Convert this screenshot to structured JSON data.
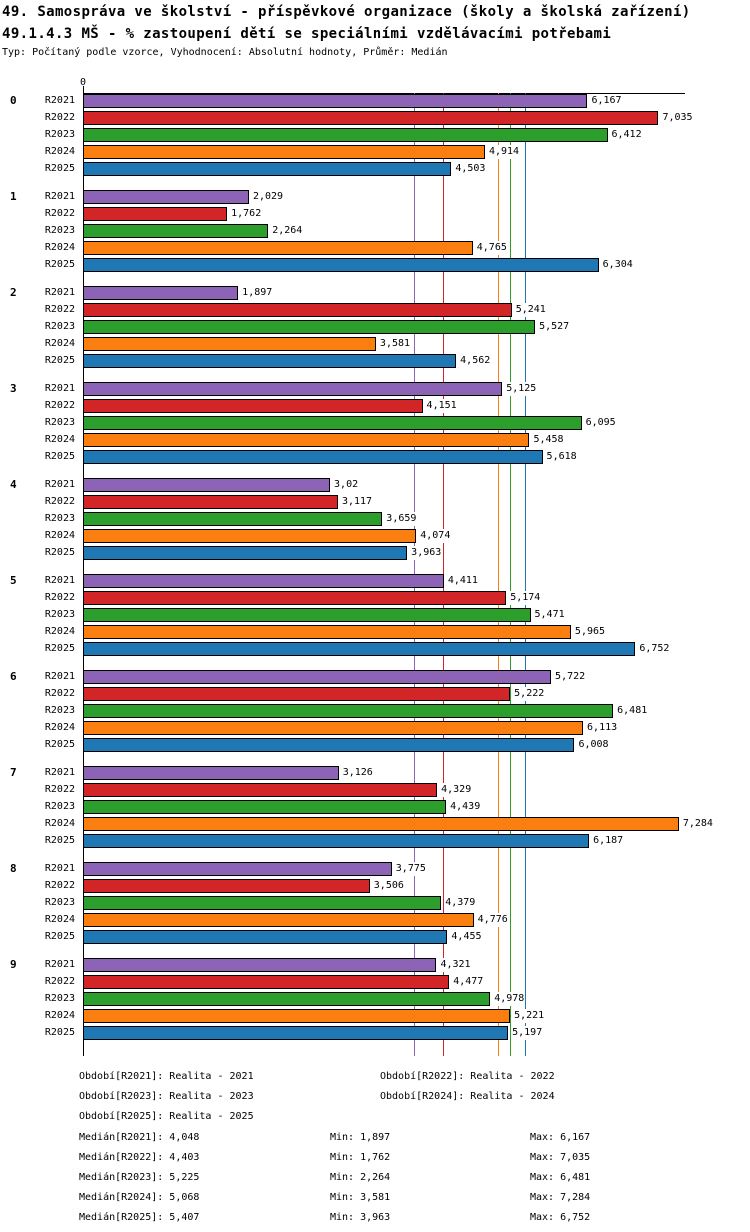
{
  "header": {
    "title_line1": "49. Samospráva ve školství - příspěvkové organizace (školy a školská zařízení)",
    "title_line2": "49.1.4.3 MŠ - % zastoupení dětí se speciálními vzdělávacími potřebami",
    "subtitle": "Typ: Počítaný podle vzorce, Vyhodnocení: Absolutní hodnoty, Průměr: Medián"
  },
  "chart_data": {
    "type": "bar",
    "orientation": "horizontal",
    "title": "49.1.4.3 MŠ - % zastoupení dětí se speciálními vzdělávacími potřebami",
    "xlabel": "",
    "ylabel": "",
    "xlim": [
      0,
      7.36
    ],
    "origin_tick_label": "0",
    "grid": false,
    "legend_position": "bottom",
    "series": [
      "R2021",
      "R2022",
      "R2023",
      "R2024",
      "R2025"
    ],
    "series_colors": {
      "R2021": "#8C63B5",
      "R2022": "#D22528",
      "R2023": "#2B9E2B",
      "R2024": "#FB7E10",
      "R2025": "#1F77B4"
    },
    "categories": [
      "0",
      "1",
      "2",
      "3",
      "4",
      "5",
      "6",
      "7",
      "8",
      "9"
    ],
    "groups": [
      {
        "category": "0",
        "values": [
          6.167,
          7.035,
          6.412,
          4.914,
          4.503
        ],
        "labels": [
          "6,167",
          "7,035",
          "6,412",
          "4,914",
          "4,503"
        ]
      },
      {
        "category": "1",
        "values": [
          2.029,
          1.762,
          2.264,
          4.765,
          6.304
        ],
        "labels": [
          "2,029",
          "1,762",
          "2,264",
          "4,765",
          "6,304"
        ]
      },
      {
        "category": "2",
        "values": [
          1.897,
          5.241,
          5.527,
          3.581,
          4.562
        ],
        "labels": [
          "1,897",
          "5,241",
          "5,527",
          "3,581",
          "4,562"
        ]
      },
      {
        "category": "3",
        "values": [
          5.125,
          4.151,
          6.095,
          5.458,
          5.618
        ],
        "labels": [
          "5,125",
          "4,151",
          "6,095",
          "5,458",
          "5,618"
        ]
      },
      {
        "category": "4",
        "values": [
          3.02,
          3.117,
          3.659,
          4.074,
          3.963
        ],
        "labels": [
          "3,02",
          "3,117",
          "3,659",
          "4,074",
          "3,963"
        ]
      },
      {
        "category": "5",
        "values": [
          4.411,
          5.174,
          5.471,
          5.965,
          6.752
        ],
        "labels": [
          "4,411",
          "5,174",
          "5,471",
          "5,965",
          "6,752"
        ]
      },
      {
        "category": "6",
        "values": [
          5.722,
          5.222,
          6.481,
          6.113,
          6.008
        ],
        "labels": [
          "5,722",
          "5,222",
          "6,481",
          "6,113",
          "6,008"
        ]
      },
      {
        "category": "7",
        "values": [
          3.126,
          4.329,
          4.439,
          7.284,
          6.187
        ],
        "labels": [
          "3,126",
          "4,329",
          "4,439",
          "7,284",
          "6,187"
        ]
      },
      {
        "category": "8",
        "values": [
          3.775,
          3.506,
          4.379,
          4.776,
          4.455
        ],
        "labels": [
          "3,775",
          "3,506",
          "4,379",
          "4,776",
          "4,455"
        ]
      },
      {
        "category": "9",
        "values": [
          4.321,
          4.477,
          4.978,
          5.221,
          5.197
        ],
        "labels": [
          "4,321",
          "4,477",
          "4,978",
          "5,221",
          "5,197"
        ]
      }
    ],
    "median_lines": [
      {
        "series": "R2021",
        "value": 4.048
      },
      {
        "series": "R2022",
        "value": 4.403
      },
      {
        "series": "R2023",
        "value": 5.225
      },
      {
        "series": "R2024",
        "value": 5.068
      },
      {
        "series": "R2025",
        "value": 5.407
      }
    ]
  },
  "legend": {
    "periods": [
      {
        "col1": "Období[R2021]: Realita - 2021",
        "col2": "Období[R2022]: Realita - 2022"
      },
      {
        "col1": "Období[R2023]: Realita - 2023",
        "col2": "Období[R2024]: Realita - 2024"
      },
      {
        "col1": "Období[R2025]: Realita - 2025",
        "col2": ""
      }
    ],
    "stats": [
      {
        "median": "Medián[R2021]: 4,048",
        "min": "Min: 1,897",
        "max": "Max: 6,167"
      },
      {
        "median": "Medián[R2022]: 4,403",
        "min": "Min: 1,762",
        "max": "Max: 7,035"
      },
      {
        "median": "Medián[R2023]: 5,225",
        "min": "Min: 2,264",
        "max": "Max: 6,481"
      },
      {
        "median": "Medián[R2024]: 5,068",
        "min": "Min: 3,581",
        "max": "Max: 7,284"
      },
      {
        "median": "Medián[R2025]: 5,407",
        "min": "Min: 3,963",
        "max": "Max: 6,752"
      }
    ]
  }
}
